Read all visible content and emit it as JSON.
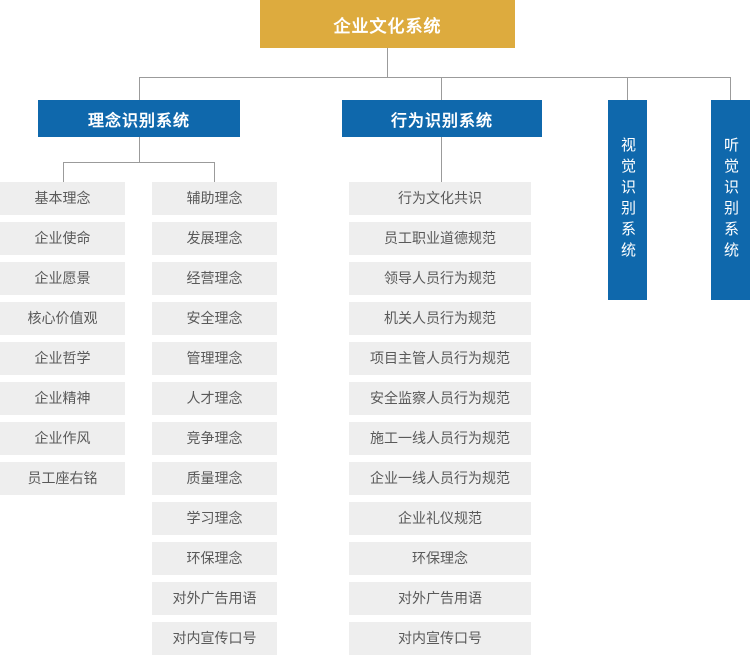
{
  "title": "企业文化系统",
  "colors": {
    "root_bg": "#ddab3e",
    "branch_bg": "#0f68ac",
    "item_bg": "#eeeeee",
    "item_text": "#595959",
    "line": "#9b9b9b",
    "header_text": "#ffffff"
  },
  "branches": {
    "concept": {
      "label": "理念识别系统",
      "col1": [
        "基本理念",
        "企业使命",
        "企业愿景",
        "核心价值观",
        "企业哲学",
        "企业精神",
        "企业作风",
        "员工座右铭"
      ],
      "col2": [
        "辅助理念",
        "发展理念",
        "经营理念",
        "安全理念",
        "管理理念",
        "人才理念",
        "竞争理念",
        "质量理念",
        "学习理念",
        "环保理念",
        "对外广告用语",
        "对内宣传口号"
      ]
    },
    "behavior": {
      "label": "行为识别系统",
      "items": [
        "行为文化共识",
        "员工职业道德规范",
        "领导人员行为规范",
        "机关人员行为规范",
        "项目主管人员行为规范",
        "安全监察人员行为规范",
        "施工一线人员行为规范",
        "企业一线人员行为规范",
        "企业礼仪规范",
        "环保理念",
        "对外广告用语",
        "对内宣传口号"
      ]
    },
    "visual": {
      "label": "视觉识别系统"
    },
    "auditory": {
      "label": "听觉识别系统"
    }
  }
}
